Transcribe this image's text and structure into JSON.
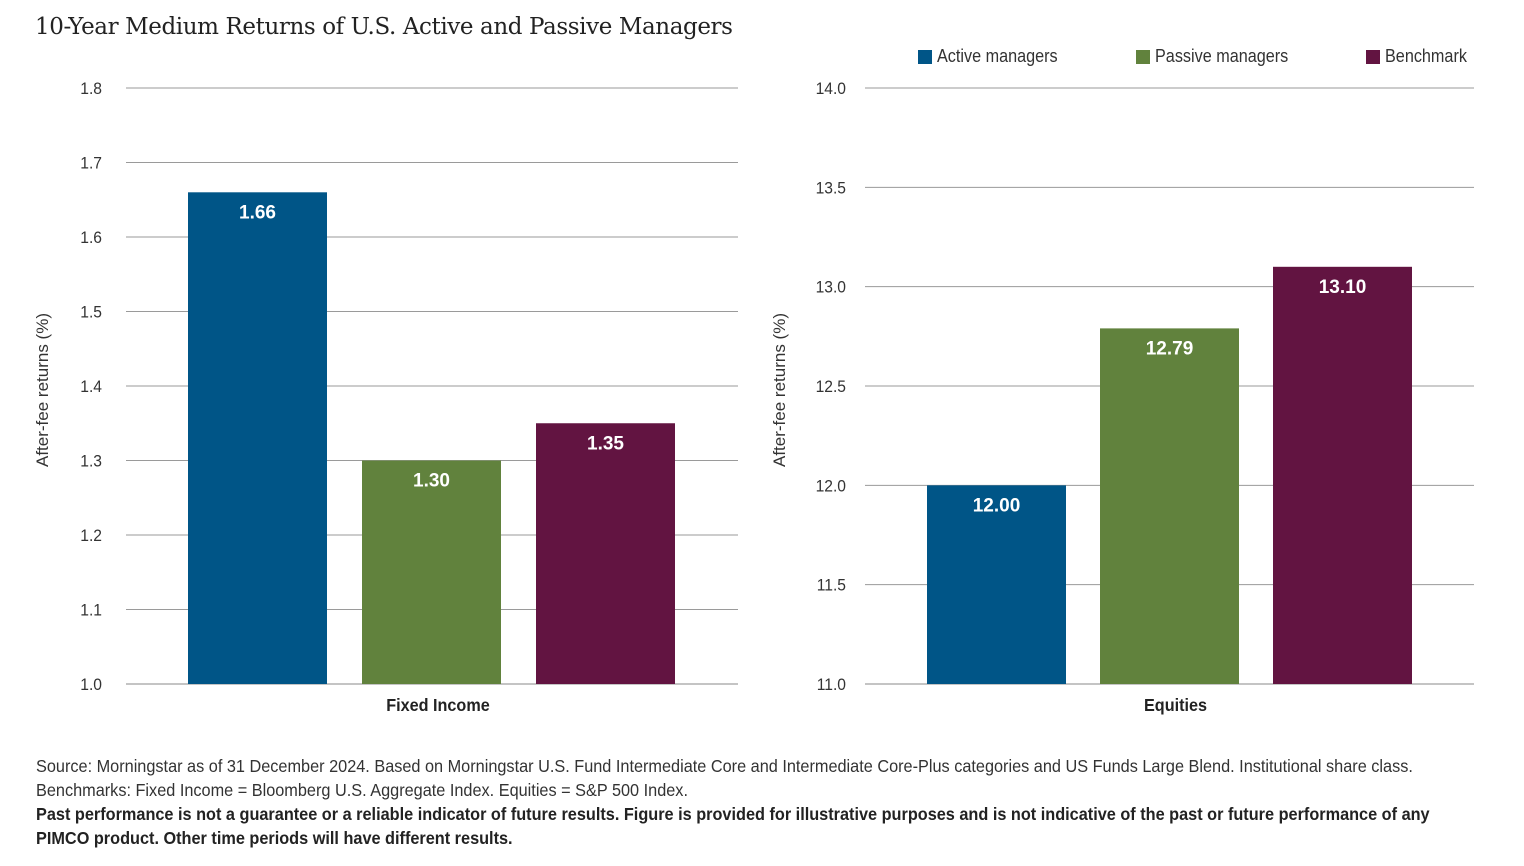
{
  "title": "10-Year Medium Returns of U.S. Active and Passive Managers",
  "legend": [
    {
      "label": "Active managers",
      "color": "#005587"
    },
    {
      "label": "Passive managers",
      "color": "#61823D"
    },
    {
      "label": "Benchmark",
      "color": "#621441"
    }
  ],
  "chart_data": [
    {
      "type": "bar",
      "title": "",
      "categories": [
        "Fixed Income"
      ],
      "series": [
        {
          "name": "Active managers",
          "values": [
            1.66
          ],
          "labels": [
            "1.66"
          ],
          "color": "#005587"
        },
        {
          "name": "Passive managers",
          "values": [
            1.3
          ],
          "labels": [
            "1.30"
          ],
          "color": "#61823D"
        },
        {
          "name": "Benchmark",
          "values": [
            1.35
          ],
          "labels": [
            "1.35"
          ],
          "color": "#621441"
        }
      ],
      "xlabel": "Fixed Income",
      "ylabel": "After-fee returns (%)",
      "ylim": [
        1.0,
        1.8
      ],
      "yticks": [
        "1.0",
        "1.1",
        "1.2",
        "1.3",
        "1.4",
        "1.5",
        "1.6",
        "1.7",
        "1.8"
      ],
      "grid": true
    },
    {
      "type": "bar",
      "title": "",
      "categories": [
        "Equities"
      ],
      "series": [
        {
          "name": "Active managers",
          "values": [
            12.0
          ],
          "labels": [
            "12.00"
          ],
          "color": "#005587"
        },
        {
          "name": "Passive managers",
          "values": [
            12.79
          ],
          "labels": [
            "12.79"
          ],
          "color": "#61823D"
        },
        {
          "name": "Benchmark",
          "values": [
            13.1
          ],
          "labels": [
            "13.10"
          ],
          "color": "#621441"
        }
      ],
      "xlabel": "Equities",
      "ylabel": "After-fee returns (%)",
      "ylim": [
        11.0,
        14.0
      ],
      "yticks": [
        "11.0",
        "11.5",
        "12.0",
        "12.5",
        "13.0",
        "13.5",
        "14.0"
      ],
      "grid": true
    }
  ],
  "footnote": {
    "source": "Source: Morningstar as of 31 December 2024. Based on Morningstar U.S. Fund Intermediate Core and Intermediate Core-Plus categories and US Funds Large Blend. Institutional share class. Benchmarks: Fixed Income = Bloomberg U.S. Aggregate Index. Equities = S&P 500 Index.",
    "disclaimer": "Past performance is not a guarantee or a reliable indicator of future results. Figure is provided for illustrative purposes and is not indicative of the past or future performance of any PIMCO product. Other time periods will have different results."
  }
}
